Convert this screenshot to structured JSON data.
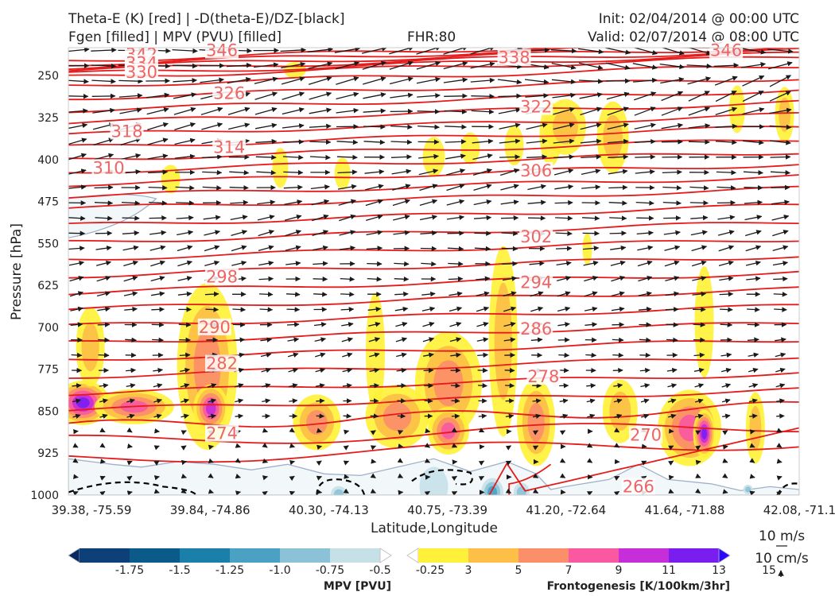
{
  "header": {
    "title_line1": "Theta-E (K) [red] | -D(theta-E)/DZ-[black]",
    "title_line2": "Fgen [filled] | MPV (PVU) [filled]",
    "fhr": "FHR:80",
    "init": "Init: 02/04/2014 @ 00:00 UTC",
    "valid": "Valid: 02/07/2014 @ 08:00 UTC"
  },
  "chart_data": {
    "type": "cross-section",
    "xlabel": "Latitude,Longitude",
    "ylabel": "Pressure [hPa]",
    "x_ticks": [
      "39.38, -75.59",
      "39.84, -74.86",
      "40.30, -74.13",
      "40.75, -73.39",
      "41.20, -72.64",
      "41.64, -71.88",
      "42.08, -71.11"
    ],
    "y_ticks": [
      250,
      325,
      400,
      475,
      550,
      625,
      700,
      775,
      850,
      925,
      1000
    ],
    "ylim": [
      1000,
      200
    ],
    "theta_e_labels": [
      {
        "value": "346",
        "x_frac": 0.21,
        "p": 205
      },
      {
        "value": "346",
        "x_frac": 0.9,
        "p": 205
      },
      {
        "value": "342",
        "x_frac": 0.1,
        "p": 212
      },
      {
        "value": "338",
        "x_frac": 0.61,
        "p": 218
      },
      {
        "value": "334",
        "x_frac": 0.1,
        "p": 228
      },
      {
        "value": "330",
        "x_frac": 0.1,
        "p": 244
      },
      {
        "value": "326",
        "x_frac": 0.22,
        "p": 282
      },
      {
        "value": "322",
        "x_frac": 0.64,
        "p": 306
      },
      {
        "value": "318",
        "x_frac": 0.08,
        "p": 350
      },
      {
        "value": "314",
        "x_frac": 0.22,
        "p": 378
      },
      {
        "value": "310",
        "x_frac": 0.055,
        "p": 415
      },
      {
        "value": "306",
        "x_frac": 0.64,
        "p": 420
      },
      {
        "value": "302",
        "x_frac": 0.64,
        "p": 538
      },
      {
        "value": "298",
        "x_frac": 0.21,
        "p": 610
      },
      {
        "value": "294",
        "x_frac": 0.64,
        "p": 620
      },
      {
        "value": "290",
        "x_frac": 0.2,
        "p": 700
      },
      {
        "value": "286",
        "x_frac": 0.64,
        "p": 703
      },
      {
        "value": "282",
        "x_frac": 0.21,
        "p": 765
      },
      {
        "value": "278",
        "x_frac": 0.65,
        "p": 788
      },
      {
        "value": "274",
        "x_frac": 0.21,
        "p": 890
      },
      {
        "value": "270",
        "x_frac": 0.79,
        "p": 893
      },
      {
        "value": "266",
        "x_frac": 0.78,
        "p": 985
      }
    ],
    "mpv_colorbar": {
      "label": "MPV [PVU]",
      "ticks": [
        "-1.75",
        "-1.5",
        "-1.25",
        "-1.0",
        "-0.75",
        "-0.5",
        "-0.25"
      ],
      "colors": [
        "#082a63",
        "#0d3f78",
        "#0a5a8a",
        "#1b80a9",
        "#4aa1c4",
        "#8cc2d7",
        "#c6e0e8",
        "#ffffff"
      ]
    },
    "fgen_colorbar": {
      "label": "Frontogenesis [K/100km/3hr]",
      "ticks": [
        "3",
        "5",
        "7",
        "9",
        "11",
        "13",
        "15"
      ],
      "colors": [
        "#ffffff",
        "#fff13a",
        "#fdbf48",
        "#fb8f6a",
        "#fa58a0",
        "#c52ed9",
        "#7a1ef0",
        "#2a0afc"
      ]
    },
    "wind_reference": {
      "horizontal": "10 m/s",
      "vertical": "10 cm/s"
    },
    "colors": {
      "theta_e": "#e51a1a",
      "label_color": "#f06464",
      "mpv_outline": "#9eb1c9",
      "stability": "#000000"
    }
  }
}
